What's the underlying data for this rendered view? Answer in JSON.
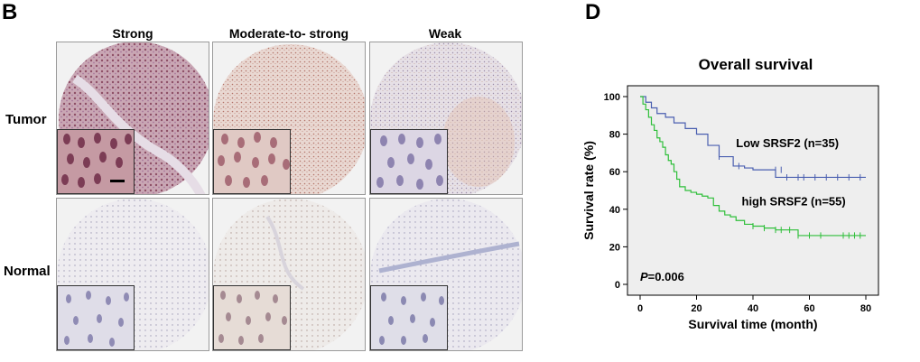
{
  "panel_b": {
    "letter": "B",
    "columns": [
      "Strong",
      "Moderate-to- strong",
      "Weak"
    ],
    "rows": [
      "Tumor",
      "Normal"
    ]
  },
  "panel_d": {
    "letter": "D",
    "chart_data": {
      "type": "line",
      "title": "Overall survival",
      "xlabel": "Survival time (month)",
      "ylabel": "Survival rate (%)",
      "xlim": [
        0,
        80
      ],
      "ylim": [
        0,
        100
      ],
      "xticks": [
        0,
        20,
        40,
        60,
        80
      ],
      "yticks": [
        0,
        20,
        40,
        60,
        80,
        100
      ],
      "grid": false,
      "annotation": "P=0.006",
      "series": [
        {
          "name": "Low SRSF2 (n=35)",
          "color": "#4a5fb0",
          "x": [
            0,
            2,
            4,
            6,
            9,
            12,
            16,
            20,
            24,
            28,
            33,
            37,
            40,
            48,
            80
          ],
          "y": [
            100,
            97,
            94,
            91,
            89,
            86,
            83,
            80,
            74,
            68,
            63,
            62,
            61,
            57,
            57
          ],
          "censored_x": [
            28,
            35,
            48,
            50,
            52,
            56,
            58,
            62,
            66,
            70,
            74,
            78
          ],
          "censored_y": [
            68,
            63,
            61,
            61,
            57,
            57,
            57,
            57,
            57,
            57,
            57,
            57
          ]
        },
        {
          "name": "high SRSF2 (n=55)",
          "color": "#2fbf3a",
          "x": [
            0,
            1,
            2,
            3,
            4,
            5,
            6,
            7,
            8,
            9,
            10,
            11,
            12,
            13,
            14,
            16,
            18,
            20,
            22,
            24,
            26,
            28,
            30,
            32,
            34,
            37,
            40,
            44,
            48,
            52,
            56,
            80
          ],
          "y": [
            100,
            96,
            93,
            89,
            85,
            82,
            78,
            76,
            73,
            69,
            66,
            64,
            60,
            56,
            52,
            50,
            49,
            48,
            47,
            46,
            42,
            39,
            37,
            36,
            34,
            32,
            31,
            30,
            29,
            29,
            26,
            26
          ],
          "censored_x": [
            40,
            44,
            48,
            50,
            53,
            56,
            60,
            64,
            72,
            74,
            76,
            78
          ],
          "censored_y": [
            31,
            30,
            29,
            29,
            29,
            26,
            26,
            26,
            26,
            26,
            26,
            26
          ]
        }
      ]
    }
  }
}
